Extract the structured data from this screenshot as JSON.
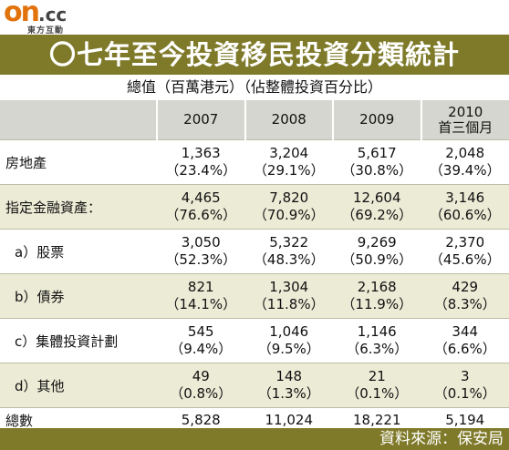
{
  "logo": {
    "brand": "on",
    "suffix": ".cc",
    "tagline": "東方互動"
  },
  "title": "〇七年至今投資移民投資分類統計",
  "subtitle": "總值（百萬港元）（佔整體投資百分比）",
  "table": {
    "columns": [
      "2007",
      "2008",
      "2009"
    ],
    "last_column": {
      "line1": "2010",
      "line2": "首三個月"
    },
    "rows": [
      {
        "label": "房地產",
        "cells": [
          {
            "value": "1,363",
            "pct": "（23.4%）"
          },
          {
            "value": "3,204",
            "pct": "（29.1%）"
          },
          {
            "value": "5,617",
            "pct": "（30.8%）"
          },
          {
            "value": "2,048",
            "pct": "（39.4%）"
          }
        ]
      },
      {
        "label": "指定金融資產：",
        "cells": [
          {
            "value": "4,465",
            "pct": "（76.6%）"
          },
          {
            "value": "7,820",
            "pct": "（70.9%）"
          },
          {
            "value": "12,604",
            "pct": "（69.2%）"
          },
          {
            "value": "3,146",
            "pct": "（60.6%）"
          }
        ]
      },
      {
        "label": "a）股票",
        "cells": [
          {
            "value": "3,050",
            "pct": "（52.3%）"
          },
          {
            "value": "5,322",
            "pct": "（48.3%）"
          },
          {
            "value": "9,269",
            "pct": "（50.9%）"
          },
          {
            "value": "2,370",
            "pct": "（45.6%）"
          }
        ]
      },
      {
        "label": "b）債券",
        "cells": [
          {
            "value": "821",
            "pct": "（14.1%）"
          },
          {
            "value": "1,304",
            "pct": "（11.8%）"
          },
          {
            "value": "2,168",
            "pct": "（11.9%）"
          },
          {
            "value": "429",
            "pct": "（8.3%）"
          }
        ]
      },
      {
        "label": "c）集體投資計劃",
        "cells": [
          {
            "value": "545",
            "pct": "（9.4%）"
          },
          {
            "value": "1,046",
            "pct": "（9.5%）"
          },
          {
            "value": "1,146",
            "pct": "（6.3%）"
          },
          {
            "value": "344",
            "pct": "（6.6%）"
          }
        ]
      },
      {
        "label": "d）其他",
        "cells": [
          {
            "value": "49",
            "pct": "（0.8%）"
          },
          {
            "value": "148",
            "pct": "（1.3%）"
          },
          {
            "value": "21",
            "pct": "（0.1%）"
          },
          {
            "value": "3",
            "pct": "（0.1%）"
          }
        ]
      }
    ],
    "total": {
      "label": "總數",
      "values": [
        "5,828",
        "11,024",
        "18,221",
        "5,194"
      ]
    }
  },
  "source": "資料來源：保安局",
  "colors": {
    "title_bar": "#7f7a2a",
    "header_row": "#d6d6d0",
    "shaded_row": "#ecebd6",
    "logo_accent": "#e2720b"
  }
}
